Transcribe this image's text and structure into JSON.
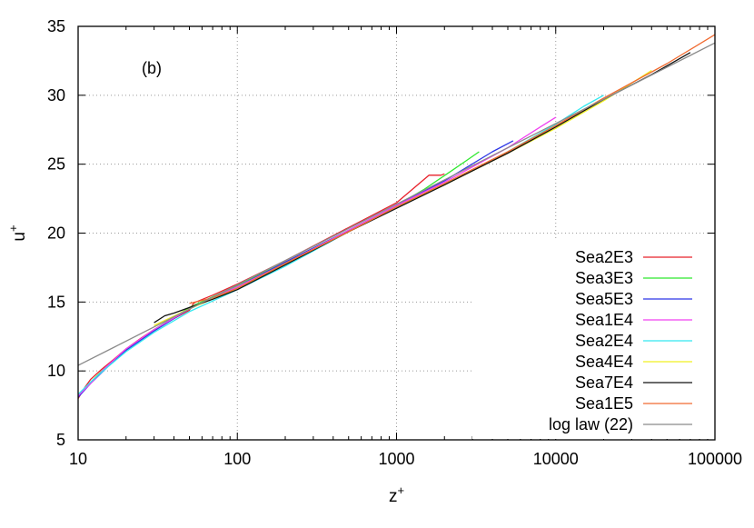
{
  "chart_data": {
    "type": "line",
    "panel_label": "(b)",
    "xlabel": "z",
    "xlabel_sup": "+",
    "ylabel": "u",
    "ylabel_sup": "+",
    "xscale": "log",
    "xlim": [
      10,
      100000
    ],
    "ylim": [
      5,
      35
    ],
    "xticks": [
      10,
      100,
      1000,
      10000,
      100000
    ],
    "xtick_labels": [
      "10",
      "100",
      "1000",
      "10000",
      "100000"
    ],
    "yticks": [
      5,
      10,
      15,
      20,
      25,
      30,
      35
    ],
    "ytick_labels": [
      "5",
      "10",
      "15",
      "20",
      "25",
      "30",
      "35"
    ],
    "grid": true,
    "legend_position": "bottom-right",
    "series": [
      {
        "name": "Sea2E3",
        "color": "#e8202a",
        "x": [
          10,
          11,
          12,
          14,
          17,
          20,
          25,
          30,
          40,
          50,
          53,
          55,
          70,
          100,
          200,
          500,
          1000,
          1600,
          1900,
          2000
        ],
        "y": [
          8.0,
          8.8,
          9.4,
          10.1,
          10.9,
          11.6,
          12.4,
          13.0,
          13.8,
          14.4,
          14.9,
          15.0,
          15.5,
          16.3,
          18.0,
          20.4,
          22.2,
          24.2,
          24.2,
          24.3
        ]
      },
      {
        "name": "Sea3E3",
        "color": "#2ee82e",
        "x": [
          10,
          12,
          15,
          20,
          30,
          50,
          100,
          200,
          500,
          1000,
          1500,
          2200,
          2700,
          3300
        ],
        "y": [
          8.2,
          9.2,
          10.3,
          11.5,
          13.0,
          14.6,
          16.2,
          17.9,
          20.2,
          22.0,
          23.2,
          24.5,
          25.2,
          25.9
        ]
      },
      {
        "name": "Sea5E3",
        "color": "#2c35e6",
        "x": [
          10,
          12,
          15,
          20,
          30,
          50,
          100,
          200,
          500,
          1000,
          2000,
          4000,
          5400
        ],
        "y": [
          8.1,
          9.1,
          10.2,
          11.5,
          12.9,
          14.5,
          16.1,
          17.9,
          20.2,
          22.0,
          23.8,
          25.9,
          26.7
        ]
      },
      {
        "name": "Sea1E4",
        "color": "#f040f0",
        "x": [
          10,
          12,
          15,
          20,
          30,
          50,
          100,
          200,
          500,
          1000,
          2000,
          5000,
          8000,
          10000
        ],
        "y": [
          8.2,
          9.1,
          10.3,
          11.6,
          13.0,
          14.5,
          16.1,
          17.8,
          20.2,
          22.0,
          23.7,
          26.2,
          27.7,
          28.4
        ]
      },
      {
        "name": "Sea2E4",
        "color": "#33e8f0",
        "x": [
          10,
          12,
          15,
          20,
          30,
          50,
          100,
          200,
          500,
          1000,
          2000,
          5000,
          10000,
          15000,
          20000
        ],
        "y": [
          8.3,
          9.2,
          10.2,
          11.4,
          12.8,
          14.3,
          15.9,
          17.6,
          20.1,
          21.9,
          23.5,
          25.9,
          27.9,
          29.2,
          30.0
        ]
      },
      {
        "name": "Sea4E4",
        "color": "#f0f020",
        "x": [
          30,
          50,
          100,
          200,
          500,
          1000,
          2000,
          5000,
          10000,
          20000,
          40000
        ],
        "y": [
          13.3,
          14.5,
          16.0,
          17.8,
          20.1,
          21.9,
          23.5,
          25.8,
          27.6,
          29.6,
          31.8
        ]
      },
      {
        "name": "Sea7E4",
        "color": "#111111",
        "x": [
          30,
          35,
          40,
          50,
          70,
          100,
          200,
          500,
          1000,
          2000,
          5000,
          10000,
          20000,
          40000,
          70000
        ],
        "y": [
          13.5,
          14.0,
          14.2,
          14.6,
          15.2,
          15.9,
          17.7,
          20.1,
          21.8,
          23.5,
          25.8,
          27.7,
          29.7,
          31.5,
          33.1
        ]
      },
      {
        "name": "Sea1E5",
        "color": "#f06a30",
        "x": [
          50,
          70,
          100,
          200,
          500,
          1000,
          2000,
          5000,
          10000,
          20000,
          50000,
          100000
        ],
        "y": [
          14.9,
          15.3,
          16.0,
          17.8,
          20.1,
          21.9,
          23.6,
          25.9,
          27.8,
          29.8,
          32.3,
          34.4
        ]
      },
      {
        "name": "log law (22)",
        "color": "#8a8a8a",
        "x": [
          10,
          100000
        ],
        "y": [
          10.4,
          33.8
        ]
      }
    ]
  }
}
